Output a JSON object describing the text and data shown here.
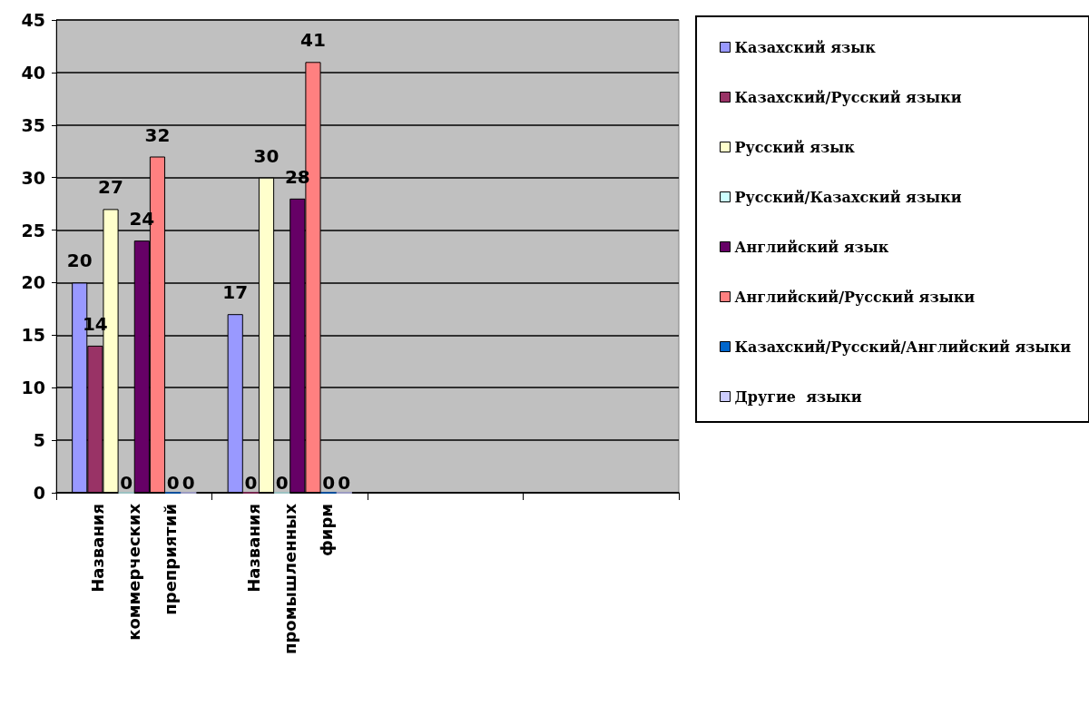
{
  "chart_data": {
    "type": "bar",
    "categories": [
      "Названия коммерческих преприятий",
      "Названия промышленных фирм",
      null,
      null
    ],
    "series": [
      {
        "name": "Казахский язык",
        "color": "#9999ff",
        "values": [
          20,
          17,
          null,
          null
        ]
      },
      {
        "name": "Казахский/Русский языки",
        "color": "#993366",
        "values": [
          14,
          0,
          null,
          null
        ]
      },
      {
        "name": "Русский язык",
        "color": "#ffffcc",
        "values": [
          27,
          30,
          null,
          null
        ]
      },
      {
        "name": "Русский/Казахский языки",
        "color": "#ccffff",
        "values": [
          0,
          0,
          null,
          null
        ]
      },
      {
        "name": "Английский язык",
        "color": "#660066",
        "values": [
          24,
          28,
          null,
          null
        ]
      },
      {
        "name": "Английский/Русский языки",
        "color": "#ff8080",
        "values": [
          32,
          41,
          null,
          null
        ]
      },
      {
        "name": "Казахский/Русский/Английский языки",
        "color": "#0066cc",
        "values": [
          0,
          0,
          null,
          null
        ]
      },
      {
        "name": "Другие  языки",
        "color": "#ccccff",
        "values": [
          0,
          0,
          null,
          null
        ]
      }
    ],
    "ylim": [
      0,
      45
    ],
    "yticks": [
      0,
      5,
      10,
      15,
      20,
      25,
      30,
      35,
      40,
      45
    ],
    "grid": "y",
    "legend": "right",
    "data_labels": true
  }
}
